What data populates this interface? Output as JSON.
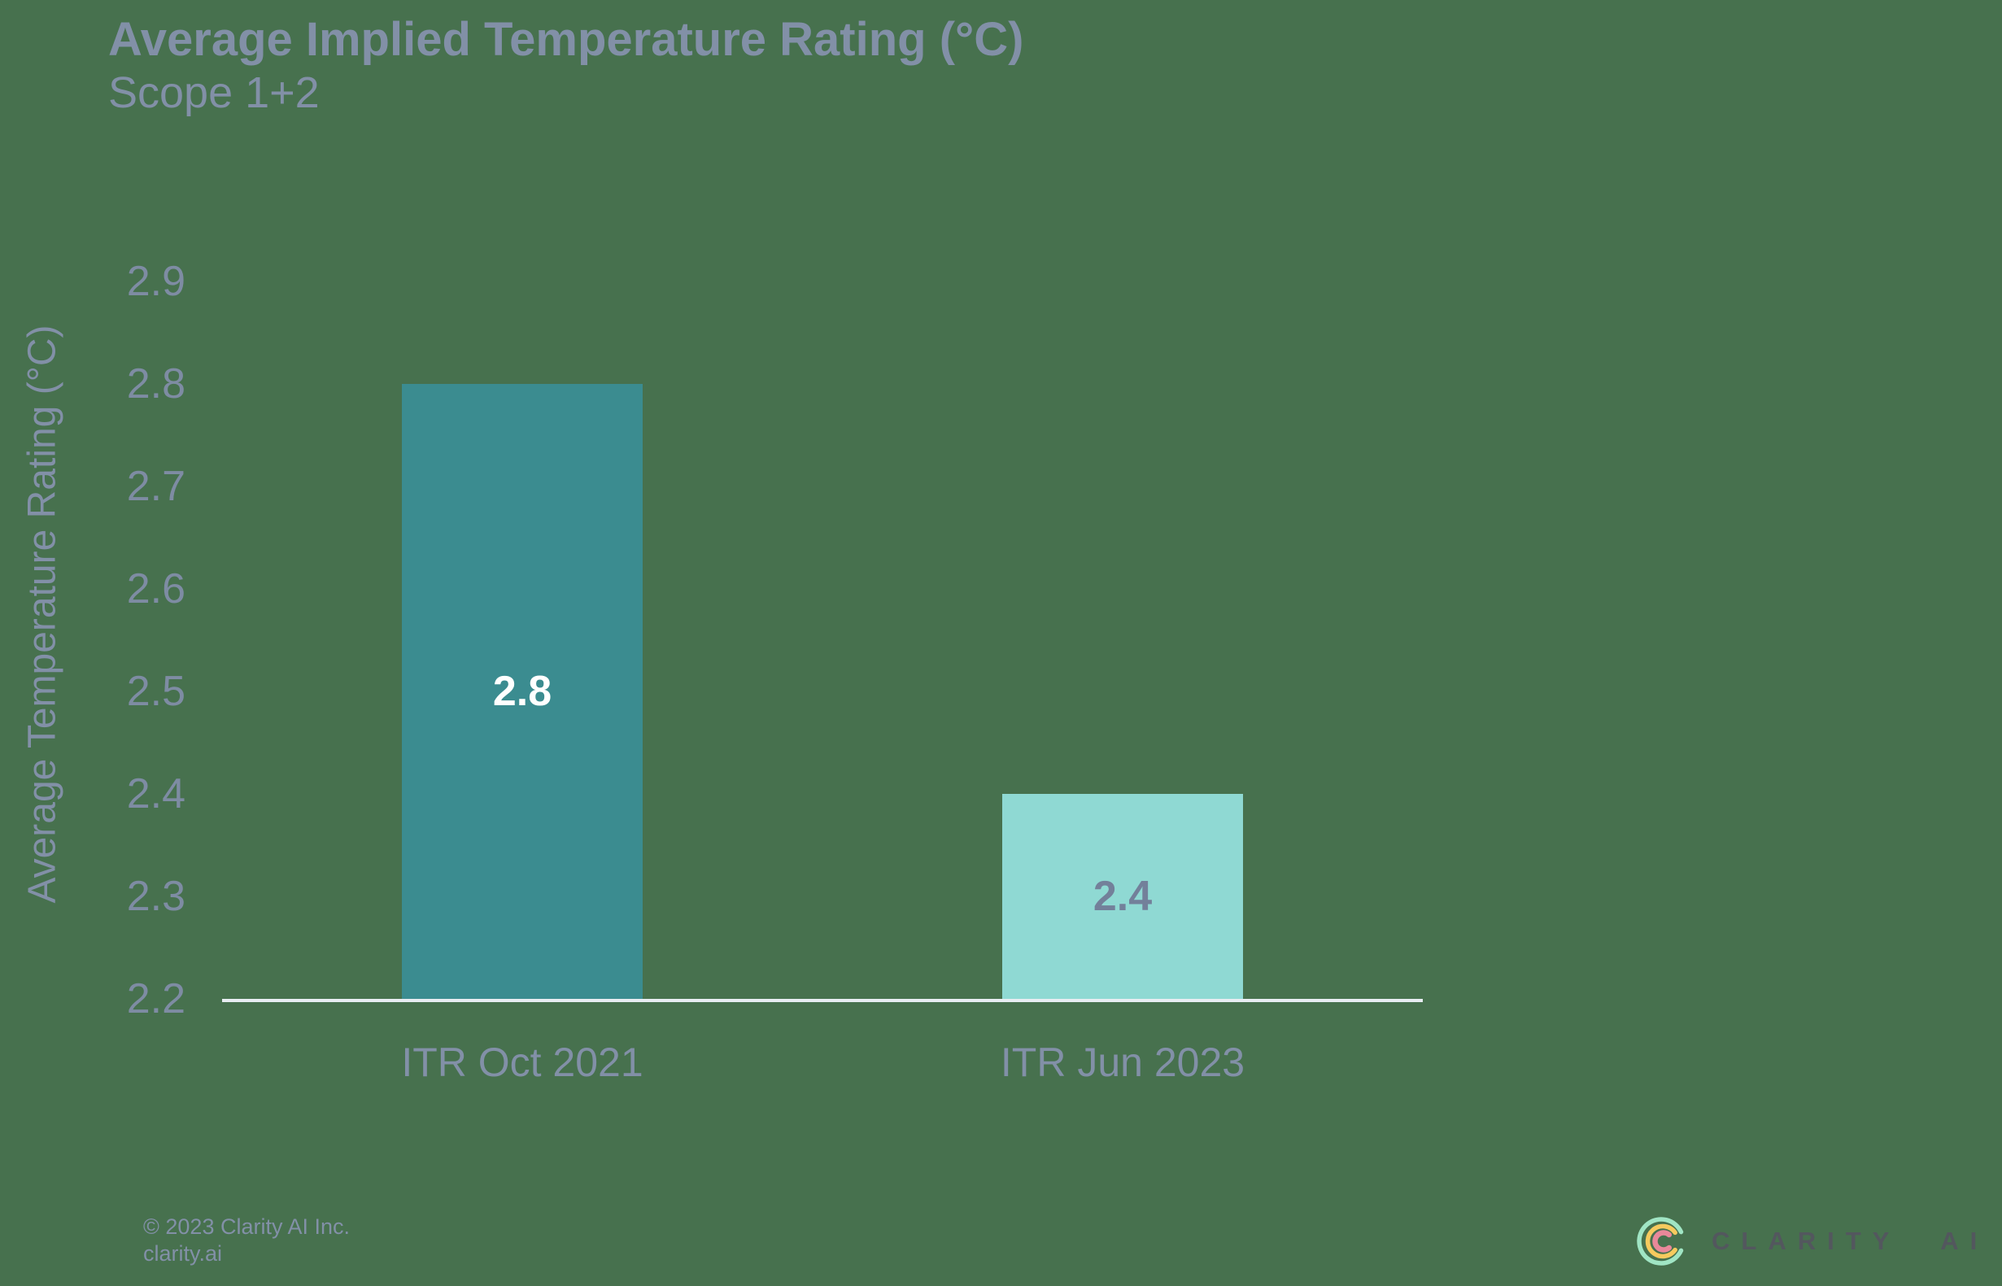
{
  "page": {
    "background_color": "#47714E"
  },
  "header": {
    "title": "Average Implied Temperature Rating (°C)",
    "subtitle": "Scope 1+2"
  },
  "chart_data": {
    "type": "bar",
    "title": "Average Implied Temperature Rating (°C)",
    "subtitle": "Scope 1+2",
    "categories": [
      "ITR Oct 2021",
      "ITR Jun 2023"
    ],
    "values": [
      2.8,
      2.4
    ],
    "bar_labels": [
      "2.8",
      "2.4"
    ],
    "bar_colors": [
      "#3B8C90",
      "#8FD9D3"
    ],
    "bar_label_colors": [
      "#FFFFFF",
      "#73809A"
    ],
    "xlabel": "",
    "ylabel": "Average Temperature Rating (°C)",
    "ylim": [
      2.2,
      2.9
    ],
    "yticks": [
      2.9,
      2.8,
      2.7,
      2.6,
      2.5,
      2.4,
      2.3,
      2.2
    ],
    "grid": false,
    "legend": false,
    "axis_line_color": "#E8EDF2",
    "tick_label_color": "#7E8CA3"
  },
  "footer": {
    "copyright": "© 2023 Clarity AI Inc.",
    "website": "clarity.ai"
  },
  "logo": {
    "brand_text": "CLARITY AI",
    "icon": "clarity-ai-concentric-c-logo",
    "outer_arc_color": "#A0E5C4",
    "middle_arc_color": "#F6CA5E",
    "inner_arc_color": "#E9889A",
    "text_color": "#53575E"
  }
}
